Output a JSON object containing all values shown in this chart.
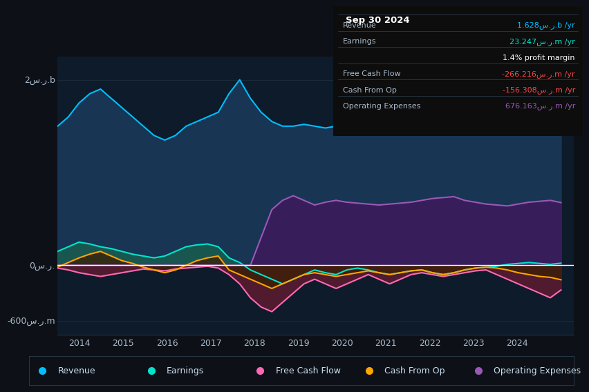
{
  "bg_color": "#0d1117",
  "plot_bg_color": "#0d1b2a",
  "years": [
    2014,
    2015,
    2016,
    2017,
    2018,
    2019,
    2020,
    2021,
    2022,
    2023,
    2024
  ],
  "ylabel_top": "2س.ر.b",
  "ylabel_bottom": "-600س.ر.m",
  "ylabel_zero": "0س.ر.",
  "revenue_color": "#00bfff",
  "earnings_color": "#00e5cc",
  "fcf_color": "#ff69b4",
  "cashop_color": "#ffa500",
  "opex_color": "#9b59b6",
  "revenue_fill": "#1a3a5c",
  "earnings_pos_fill": "#1a5c50",
  "earnings_neg_fill": "#5c1a20",
  "fcf_fill": "#5c1a30",
  "cashop_fill": "#3a2005",
  "opex_fill": "#3d1a5c",
  "info_box_bg": "#0d0d0d",
  "info_box_header": "Sep 30 2024",
  "info_rows": [
    {
      "label": "Revenue",
      "value": "1.628س.ر.b /yr",
      "color": "#00bfff"
    },
    {
      "label": "Earnings",
      "value": "23.247س.ر.m /yr",
      "color": "#00e5cc"
    },
    {
      "label": "",
      "value": "1.4% profit margin",
      "color": "#ffffff"
    },
    {
      "label": "Free Cash Flow",
      "value": "-266.216س.ر.m /yr",
      "color": "#ff4444"
    },
    {
      "label": "Cash From Op",
      "value": "-156.308س.ر.m /yr",
      "color": "#ff4444"
    },
    {
      "label": "Operating Expenses",
      "value": "676.163س.ر.m /yr",
      "color": "#9b59b6"
    }
  ],
  "legend": [
    {
      "label": "Revenue",
      "color": "#00bfff"
    },
    {
      "label": "Earnings",
      "color": "#00e5cc"
    },
    {
      "label": "Free Cash Flow",
      "color": "#ff69b4"
    },
    {
      "label": "Cash From Op",
      "color": "#ffa500"
    },
    {
      "label": "Operating Expenses",
      "color": "#9b59b6"
    }
  ],
  "grid_color": "#1e2d3d",
  "spine_color": "#334455",
  "tick_color": "#aabbcc",
  "zero_line_color": "#ffffff",
  "divider_color": "#334455",
  "label_color": "#aabbcc",
  "legend_text_color": "#ccddee"
}
